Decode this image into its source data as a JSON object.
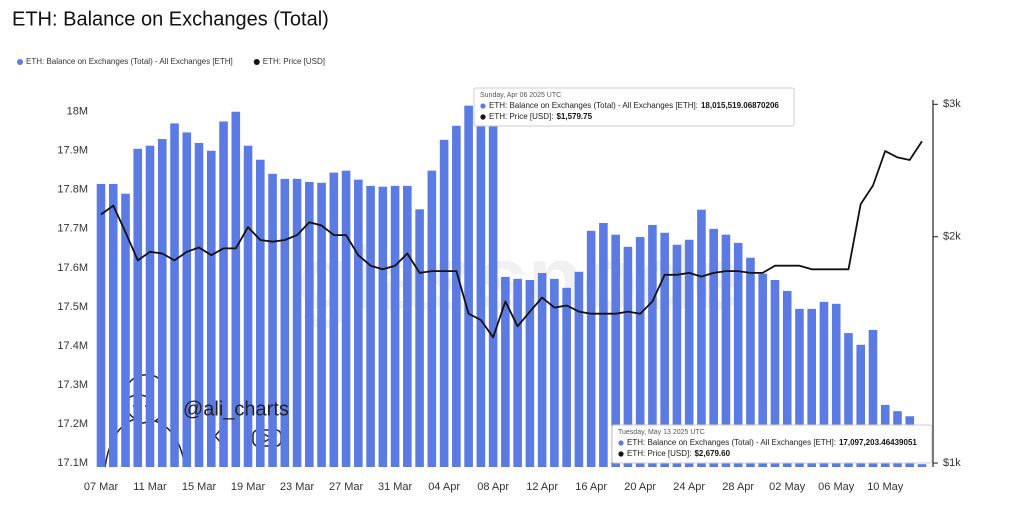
{
  "chart_data": {
    "type": "bar-line",
    "title": "ETH: Balance on Exchanges (Total)",
    "categories": [
      "07 Mar",
      null,
      null,
      null,
      "11 Mar",
      null,
      null,
      null,
      "15 Mar",
      null,
      null,
      null,
      "19 Mar",
      null,
      null,
      null,
      "23 Mar",
      null,
      null,
      null,
      "27 Mar",
      null,
      null,
      null,
      "31 Mar",
      null,
      null,
      null,
      "04 Apr",
      null,
      null,
      null,
      "08 Apr",
      null,
      null,
      null,
      "12 Apr",
      null,
      null,
      null,
      "16 Apr",
      null,
      null,
      null,
      "20 Apr",
      null,
      null,
      null,
      "24 Apr",
      null,
      null,
      null,
      "28 Apr",
      null,
      null,
      null,
      "02 May",
      null,
      null,
      null,
      "06 May",
      null,
      null,
      null,
      "10 May",
      null,
      null,
      null
    ],
    "series": [
      {
        "name": "ETH: Balance on Exchanges (Total) - All Exchanges [ETH]",
        "type": "bar",
        "color": "#5b7be3",
        "values": [
          17815000,
          17815000,
          17790000,
          17905000,
          17913000,
          17930000,
          17970000,
          17947000,
          17920000,
          17900000,
          17975000,
          18000000,
          17913000,
          17877000,
          17841000,
          17828000,
          17828000,
          17820000,
          17818000,
          17844000,
          17849000,
          17826000,
          17810000,
          17808000,
          17810000,
          17810000,
          17750000,
          17849000,
          17928000,
          17964000,
          18015519.07,
          17985000,
          17967000,
          17577000,
          17572000,
          17569000,
          17587000,
          17572000,
          17549000,
          17590000,
          17695000,
          17715000,
          17685000,
          17654000,
          17679000,
          17710000,
          17690000,
          17659000,
          17672000,
          17749000,
          17700000,
          17685000,
          17664000,
          17626000,
          17585000,
          17569000,
          17541000,
          17495000,
          17495000,
          17513000,
          17508000,
          17433000,
          17403000,
          17441000,
          17249000,
          17233000,
          17220000,
          17097203.46
        ]
      },
      {
        "name": "ETH: Price [USD]",
        "type": "line",
        "color": "#111111",
        "axis": "y2",
        "values": [
          2141,
          2200,
          2028,
          1860,
          1910,
          1900,
          1860,
          1910,
          1935,
          1890,
          1930,
          1930,
          2060,
          1980,
          1970,
          1980,
          2010,
          2090,
          2070,
          2010,
          2010,
          1890,
          1830,
          1810,
          1830,
          1900,
          1790,
          1800,
          1800,
          1800,
          1579.75,
          1550,
          1470,
          1640,
          1520,
          1590,
          1660,
          1610,
          1620,
          1590,
          1580,
          1580,
          1580,
          1590,
          1580,
          1640,
          1780,
          1780,
          1790,
          1770,
          1790,
          1800,
          1800,
          1790,
          1790,
          1830,
          1830,
          1830,
          1810,
          1810,
          1810,
          1810,
          2210,
          2340,
          2600,
          2550,
          2530,
          2679.6
        ]
      }
    ],
    "ylim": [
      17090000,
      18030000
    ],
    "yticks": [
      {
        "value": 17100000,
        "label": "17.1M"
      },
      {
        "value": 17200000,
        "label": "17.2M"
      },
      {
        "value": 17300000,
        "label": "17.3M"
      },
      {
        "value": 17400000,
        "label": "17.4M"
      },
      {
        "value": 17500000,
        "label": "17.5M"
      },
      {
        "value": 17600000,
        "label": "17.6M"
      },
      {
        "value": 17700000,
        "label": "17.7M"
      },
      {
        "value": 17800000,
        "label": "17.8M"
      },
      {
        "value": 17900000,
        "label": "17.9M"
      },
      {
        "value": 18000000,
        "label": "18M"
      }
    ],
    "y2lim": [
      988,
      3040
    ],
    "y2ticks": [
      {
        "value": 1000,
        "label": "$1k"
      },
      {
        "value": 2000,
        "label": "$2k"
      },
      {
        "value": 3000,
        "label": "$3k"
      }
    ],
    "y2_log_scale": true,
    "grid": false,
    "legend": "top-left",
    "tooltips": [
      {
        "date": "Sunday, Apr 06 2025 UTC",
        "rows": [
          {
            "label": "ETH: Balance on Exchanges (Total) - All Exchanges [ETH]:",
            "value": "18,015,519.06870206"
          },
          {
            "label": "ETH: Price [USD]:",
            "value": "$1,579.75"
          }
        ]
      },
      {
        "date": "Tuesday, May 13 2025 UTC",
        "rows": [
          {
            "label": "ETH: Balance on Exchanges (Total) - All Exchanges [ETH]:",
            "value": "17,097,203.46439051"
          },
          {
            "label": "ETH: Price [USD]:",
            "value": "$2,679.60"
          }
        ]
      }
    ],
    "watermark": "glassnode",
    "handle": "@ali_charts"
  }
}
